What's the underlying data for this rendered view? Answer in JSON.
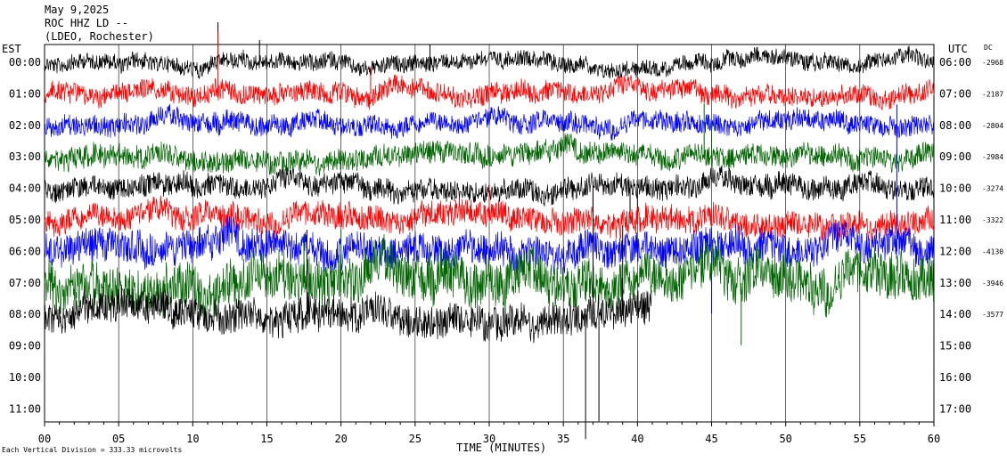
{
  "header": {
    "date": "May 9,2025",
    "station": "ROC HHZ LD --",
    "network": "(LDEO, Rochester)"
  },
  "left_timezone": "EST",
  "right_timezone": "UTC",
  "dc_label": "DC",
  "footer": {
    "xlabel": "TIME (MINUTES)",
    "scale_note": "Each Vertical Division =  333.33 microvolts"
  },
  "chart_data": {
    "type": "line",
    "subtype": "seismogram-helicorder",
    "x_range": [
      0,
      60
    ],
    "x_ticks": [
      "00",
      "05",
      "10",
      "15",
      "20",
      "25",
      "30",
      "35",
      "40",
      "45",
      "50",
      "55",
      "60"
    ],
    "xlabel": "TIME (MINUTES)",
    "grid": "vertical lines every 5 minutes",
    "colors": [
      "#000000",
      "#ff0000",
      "#0000ff",
      "#006400"
    ],
    "rows": [
      {
        "est": "00:00",
        "utc": "06:00",
        "dc": "-2968",
        "amp": 9,
        "spikes": [
          [
            11.7,
            -45
          ],
          [
            14.5,
            -25
          ],
          [
            26,
            -20
          ]
        ]
      },
      {
        "est": "01:00",
        "utc": "07:00",
        "dc": "-2187",
        "amp": 11,
        "spikes": [
          [
            11.7,
            -70
          ],
          [
            22,
            -30
          ]
        ]
      },
      {
        "est": "02:00",
        "utc": "08:00",
        "dc": "-2804",
        "amp": 11,
        "spikes": []
      },
      {
        "est": "03:00",
        "utc": "09:00",
        "dc": "-2984",
        "amp": 12,
        "spikes": [
          [
            44.5,
            -60
          ],
          [
            45,
            -40
          ]
        ]
      },
      {
        "est": "04:00",
        "utc": "10:00",
        "dc": "-3274",
        "amp": 12,
        "spikes": [
          [
            39.5,
            40
          ],
          [
            40,
            30
          ]
        ]
      },
      {
        "est": "05:00",
        "utc": "11:00",
        "dc": "-3322",
        "amp": 14,
        "spikes": [
          [
            30,
            -40
          ],
          [
            37,
            -35
          ]
        ]
      },
      {
        "est": "06:00",
        "utc": "12:00",
        "dc": "-4130",
        "amp": 18,
        "spikes": [
          [
            45,
            70
          ],
          [
            57.5,
            -165
          ]
        ]
      },
      {
        "est": "07:00",
        "utc": "13:00",
        "dc": "-3946",
        "amp": 25,
        "spikes": [
          [
            8,
            40
          ],
          [
            17.5,
            -55
          ],
          [
            20,
            -60
          ],
          [
            47,
            70
          ],
          [
            48,
            -40
          ]
        ]
      },
      {
        "est": "08:00",
        "utc": "14:00",
        "dc": "-3577",
        "amp": 18,
        "spikes": [
          [
            17.7,
            -95
          ],
          [
            36.5,
            140
          ],
          [
            37,
            -150
          ],
          [
            37.4,
            120
          ],
          [
            39,
            -100
          ]
        ],
        "end_minute": 41
      }
    ],
    "y_hour_labels_left": [
      "00:00",
      "01:00",
      "02:00",
      "03:00",
      "04:00",
      "05:00",
      "06:00",
      "07:00",
      "08:00",
      "09:00",
      "10:00",
      "11:00"
    ],
    "y_hour_labels_right": [
      "06:00",
      "07:00",
      "08:00",
      "09:00",
      "10:00",
      "11:00",
      "12:00",
      "13:00",
      "14:00",
      "15:00",
      "16:00",
      "17:00"
    ]
  }
}
